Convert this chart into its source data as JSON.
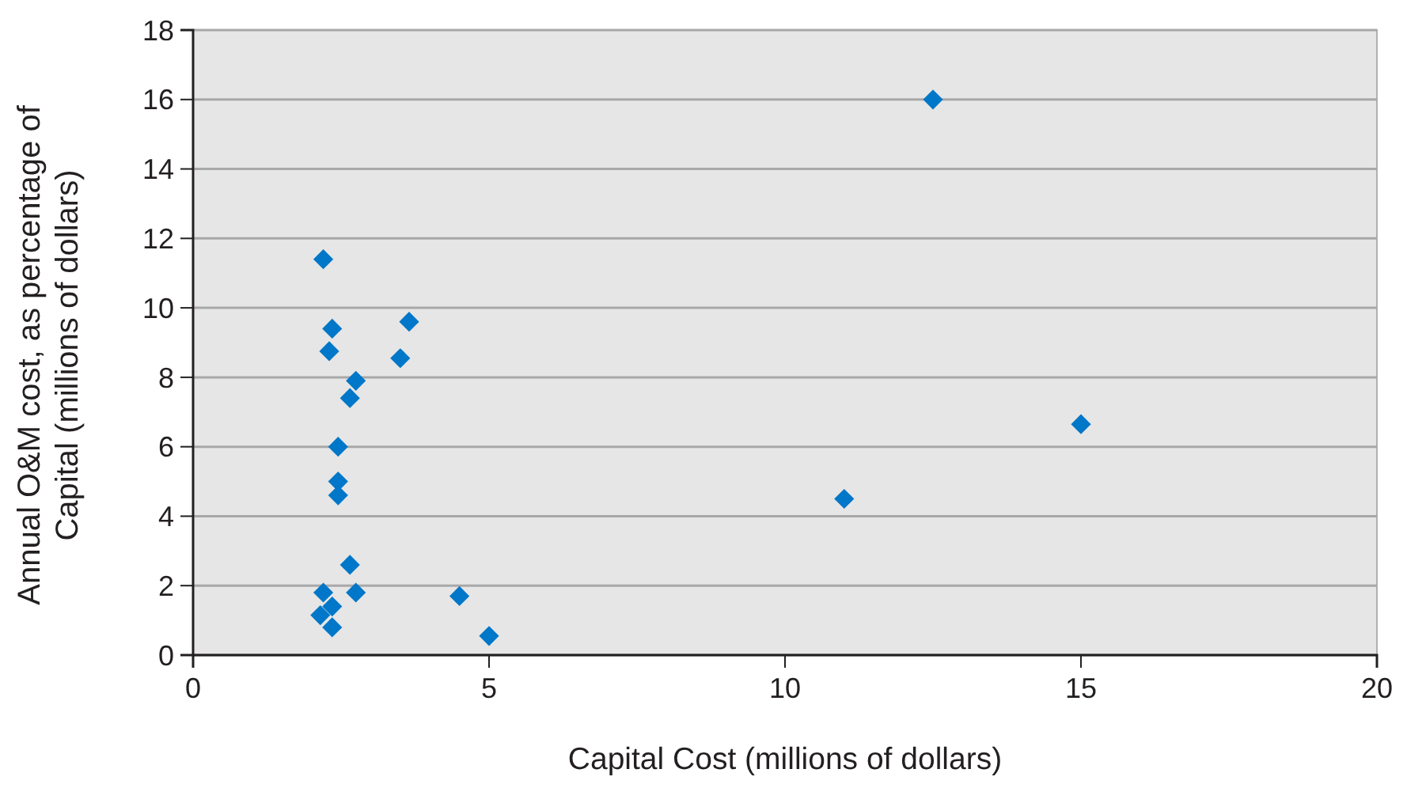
{
  "chart_data": {
    "type": "scatter",
    "xlabel": "Capital Cost (millions of dollars)",
    "ylabel": "Annual O&M cost, as percentage of Capital (millions of dollars)",
    "x": [
      2.2,
      2.35,
      3.65,
      2.3,
      3.5,
      2.75,
      2.65,
      2.45,
      2.45,
      2.45,
      2.65,
      2.2,
      2.75,
      4.5,
      5.0,
      2.35,
      2.15,
      2.35,
      12.5,
      15.0,
      11.0
    ],
    "values": [
      11.4,
      9.4,
      9.6,
      8.75,
      8.55,
      7.9,
      7.4,
      6.0,
      5.0,
      4.6,
      2.6,
      1.8,
      1.8,
      1.7,
      0.55,
      1.4,
      1.15,
      0.8,
      16.0,
      6.65,
      4.5
    ],
    "color": "#0077c8",
    "marker": "diamond",
    "xlim": [
      0,
      20
    ],
    "ylim": [
      0,
      18
    ],
    "xticks": [
      0,
      5,
      10,
      15,
      20
    ],
    "yticks": [
      0,
      2,
      4,
      6,
      8,
      10,
      12,
      14,
      16,
      18
    ],
    "grid": "y"
  }
}
